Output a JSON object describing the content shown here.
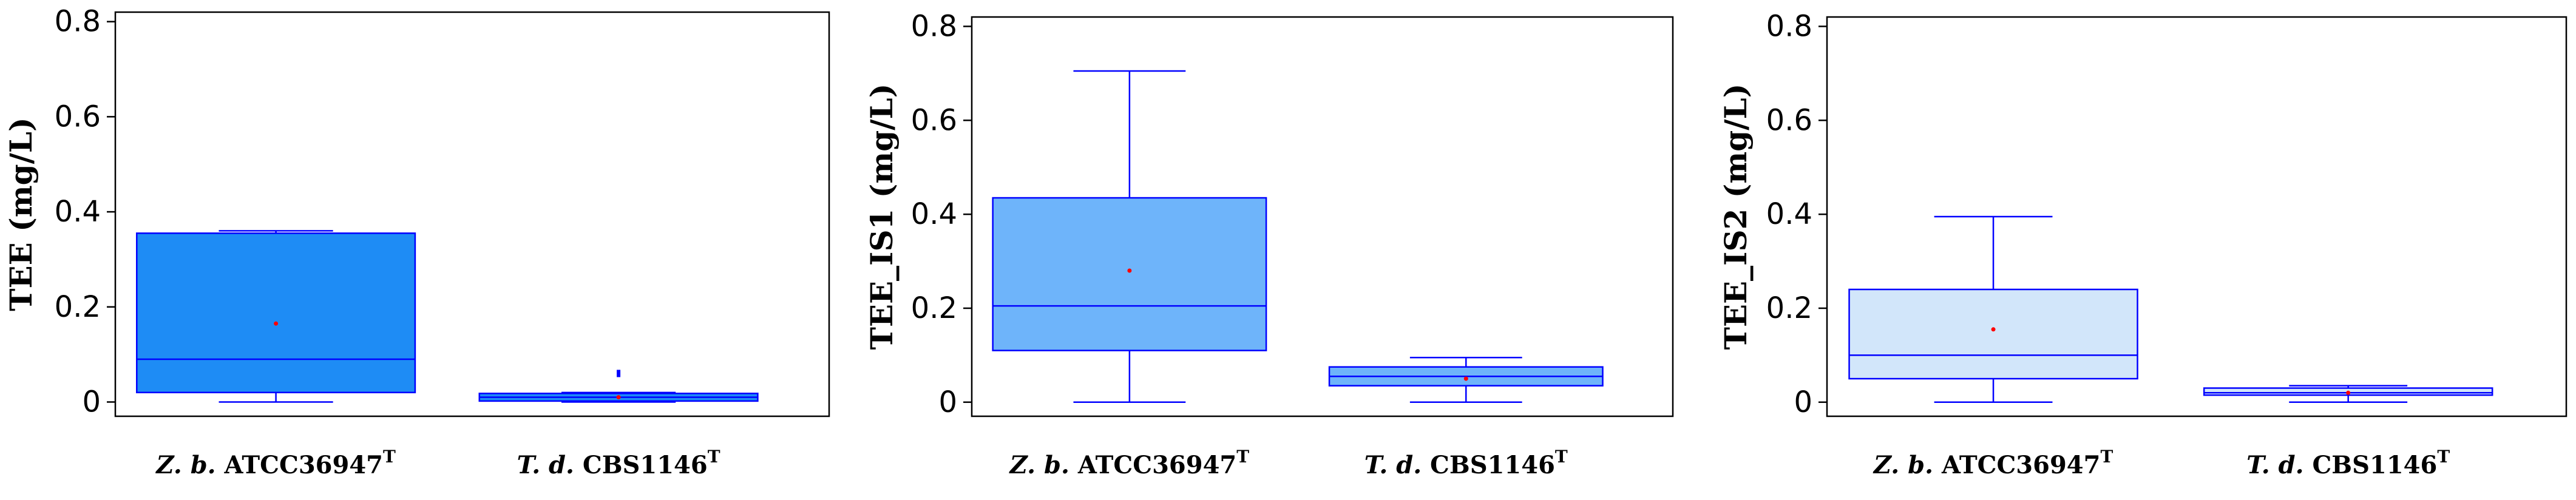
{
  "chart_data": [
    {
      "type": "box",
      "ylabel": "TEE (mg/L)",
      "ylim": [
        -0.03,
        0.82
      ],
      "yticks": [
        "0",
        "0.2",
        "0.4",
        "0.6",
        "0.8"
      ],
      "box_fill": "#1E8CF5",
      "stroke": "#0000FF",
      "mean_color": "#FF0000",
      "categories": [
        {
          "italic": "Z. b.",
          "text": " ATCC36947",
          "sup": "T"
        },
        {
          "italic": "T. d.",
          "text": " CBS1146",
          "sup": "T"
        }
      ],
      "boxes": [
        {
          "min": 0.0,
          "q1": 0.02,
          "median": 0.09,
          "q3": 0.355,
          "max": 0.36,
          "mean": 0.165,
          "outliers": []
        },
        {
          "min": 0.0,
          "q1": 0.002,
          "median": 0.01,
          "q3": 0.018,
          "max": 0.02,
          "mean": 0.01,
          "outliers": [
            0.06
          ]
        }
      ]
    },
    {
      "type": "box",
      "ylabel": "TEE_IS1 (mg/L)",
      "ylim": [
        -0.03,
        0.82
      ],
      "yticks": [
        "0",
        "0.2",
        "0.4",
        "0.6",
        "0.8"
      ],
      "box_fill": "#6EB4FA",
      "stroke": "#0000FF",
      "mean_color": "#FF0000",
      "categories": [
        {
          "italic": "Z. b.",
          "text": " ATCC36947",
          "sup": "T"
        },
        {
          "italic": "T. d.",
          "text": " CBS1146",
          "sup": "T"
        }
      ],
      "boxes": [
        {
          "min": 0.0,
          "q1": 0.11,
          "median": 0.205,
          "q3": 0.435,
          "max": 0.705,
          "mean": 0.28,
          "outliers": []
        },
        {
          "min": 0.0,
          "q1": 0.035,
          "median": 0.055,
          "q3": 0.075,
          "max": 0.095,
          "mean": 0.05,
          "outliers": []
        }
      ]
    },
    {
      "type": "box",
      "ylabel": "TEE_IS2 (mg/L)",
      "ylim": [
        -0.03,
        0.82
      ],
      "yticks": [
        "0",
        "0.2",
        "0.4",
        "0.6",
        "0.8"
      ],
      "box_fill": "#D2E6FA",
      "stroke": "#0000FF",
      "mean_color": "#FF0000",
      "categories": [
        {
          "italic": "Z. b.",
          "text": " ATCC36947",
          "sup": "T"
        },
        {
          "italic": "T. d.",
          "text": " CBS1146",
          "sup": "T"
        }
      ],
      "boxes": [
        {
          "min": 0.0,
          "q1": 0.05,
          "median": 0.1,
          "q3": 0.24,
          "max": 0.395,
          "mean": 0.155,
          "outliers": []
        },
        {
          "min": 0.0,
          "q1": 0.015,
          "median": 0.02,
          "q3": 0.03,
          "max": 0.035,
          "mean": 0.02,
          "outliers": []
        }
      ]
    }
  ]
}
